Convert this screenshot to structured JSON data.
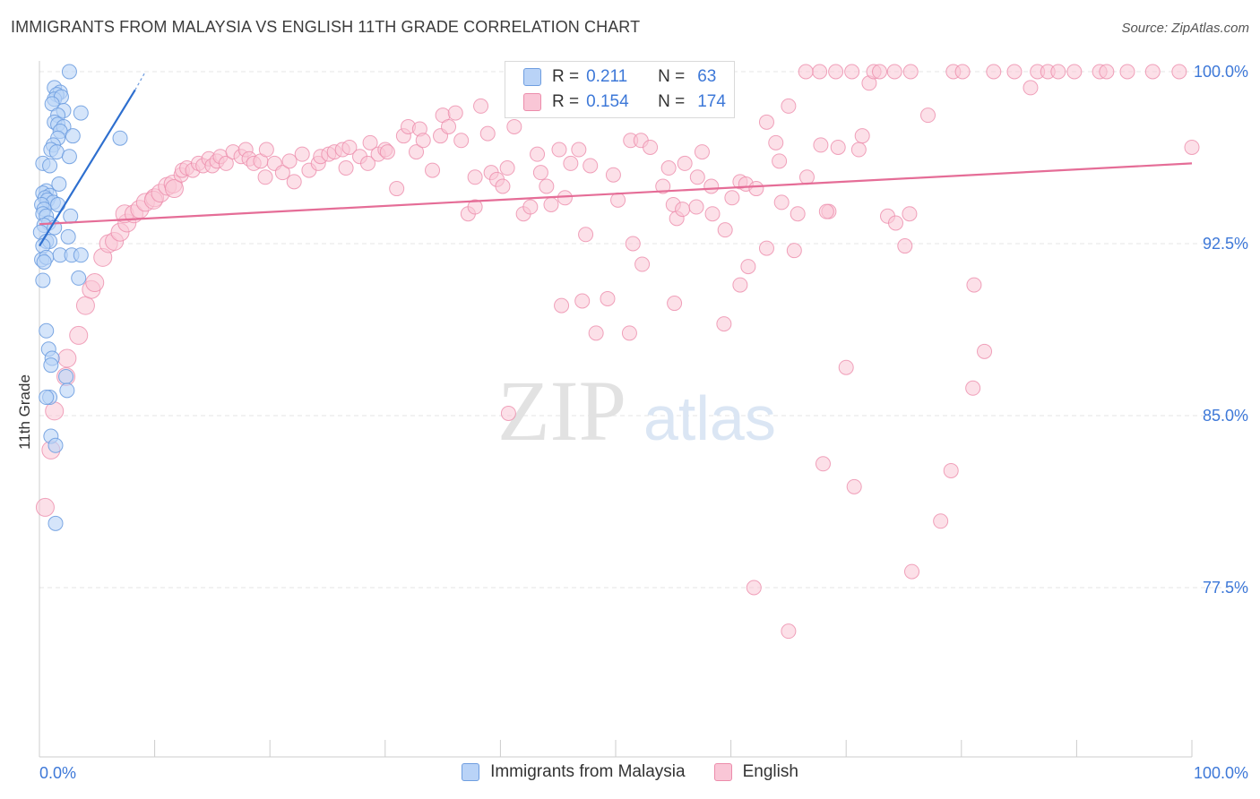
{
  "header": {
    "title": "IMMIGRANTS FROM MALAYSIA VS ENGLISH 11TH GRADE CORRELATION CHART",
    "source": "Source: ZipAtlas.com"
  },
  "watermark": {
    "zip": "ZIP",
    "atlas": "atlas"
  },
  "legend_top": {
    "rows": [
      {
        "r_label": "R =",
        "r_value": "0.211",
        "n_label": "N =",
        "n_value": "63",
        "fill": "#b9d3f7",
        "stroke": "#6f9ee0"
      },
      {
        "r_label": "R =",
        "r_value": "0.154",
        "n_label": "N =",
        "n_value": "174",
        "fill": "#f9c6d6",
        "stroke": "#ec8cab"
      }
    ]
  },
  "legend_bottom": {
    "items": [
      {
        "label": "Immigrants from Malaysia",
        "fill": "#b9d3f7",
        "stroke": "#6f9ee0"
      },
      {
        "label": "English",
        "fill": "#f9c6d6",
        "stroke": "#ec8cab"
      }
    ]
  },
  "chart_data": {
    "type": "scatter",
    "title": "IMMIGRANTS FROM MALAYSIA VS ENGLISH 11TH GRADE CORRELATION CHART",
    "xlabel": "",
    "ylabel": "11th Grade",
    "xlim": [
      0,
      100
    ],
    "ylim": [
      71.5,
      100.8
    ],
    "x_tick_labels": [
      "0.0%",
      "100.0%"
    ],
    "y_ticks": [
      {
        "value": 100.0,
        "label": "100.0%"
      },
      {
        "value": 92.5,
        "label": "92.5%"
      },
      {
        "value": 85.0,
        "label": "85.0%"
      },
      {
        "value": 77.5,
        "label": "77.5%"
      }
    ],
    "series": [
      {
        "name": "Immigrants from Malaysia",
        "color": "#6f9ee0",
        "fill": "#b9d3f7",
        "R": 0.211,
        "N": 63,
        "trend": {
          "x0": 0,
          "y0": 92.4,
          "x1": 8.3,
          "y1": 99.2,
          "dash_to_x": 9.2,
          "dash_to_y": 100.0,
          "color": "#2e6fcf"
        },
        "points": [
          [
            2.6,
            100.0
          ],
          [
            1.3,
            99.3
          ],
          [
            1.8,
            99.1
          ],
          [
            1.5,
            99.0
          ],
          [
            1.3,
            98.8
          ],
          [
            1.9,
            98.9
          ],
          [
            1.1,
            98.6
          ],
          [
            2.1,
            98.3
          ],
          [
            3.6,
            98.2
          ],
          [
            1.6,
            98.1
          ],
          [
            1.3,
            97.8
          ],
          [
            1.6,
            97.7
          ],
          [
            2.1,
            97.6
          ],
          [
            1.8,
            97.4
          ],
          [
            2.9,
            97.2
          ],
          [
            1.6,
            97.1
          ],
          [
            7.0,
            97.1
          ],
          [
            1.2,
            96.8
          ],
          [
            1.0,
            96.6
          ],
          [
            1.5,
            96.5
          ],
          [
            2.6,
            96.3
          ],
          [
            0.3,
            96.0
          ],
          [
            0.9,
            95.9
          ],
          [
            1.7,
            95.1
          ],
          [
            0.6,
            94.8
          ],
          [
            0.3,
            94.7
          ],
          [
            0.9,
            94.6
          ],
          [
            0.5,
            94.5
          ],
          [
            0.7,
            94.4
          ],
          [
            1.2,
            94.3
          ],
          [
            0.2,
            94.2
          ],
          [
            1.6,
            94.2
          ],
          [
            0.4,
            94.0
          ],
          [
            0.3,
            93.8
          ],
          [
            0.6,
            93.7
          ],
          [
            2.7,
            93.7
          ],
          [
            0.8,
            93.4
          ],
          [
            0.4,
            93.3
          ],
          [
            0.1,
            93.0
          ],
          [
            1.3,
            93.2
          ],
          [
            2.5,
            92.8
          ],
          [
            0.6,
            92.6
          ],
          [
            0.9,
            92.6
          ],
          [
            0.3,
            92.4
          ],
          [
            1.8,
            92.0
          ],
          [
            2.8,
            92.0
          ],
          [
            3.6,
            92.0
          ],
          [
            0.2,
            91.8
          ],
          [
            0.6,
            91.9
          ],
          [
            0.4,
            91.7
          ],
          [
            3.4,
            91.0
          ],
          [
            0.3,
            90.9
          ],
          [
            0.6,
            88.7
          ],
          [
            0.8,
            87.9
          ],
          [
            1.1,
            87.5
          ],
          [
            1.0,
            87.2
          ],
          [
            2.3,
            86.7
          ],
          [
            2.4,
            86.1
          ],
          [
            0.9,
            85.8
          ],
          [
            0.6,
            85.8
          ],
          [
            1.0,
            84.1
          ],
          [
            1.4,
            83.7
          ],
          [
            1.4,
            80.3
          ]
        ]
      },
      {
        "name": "English",
        "color": "#ec8cab",
        "fill": "#f9c6d6",
        "R": 0.154,
        "N": 174,
        "trend": {
          "x0": 0,
          "y0": 93.35,
          "x1": 100,
          "y1": 96.0,
          "color": "#e56d97"
        },
        "points": [
          [
            0.5,
            81.0
          ],
          [
            1.0,
            83.5
          ],
          [
            1.3,
            85.2
          ],
          [
            2.3,
            86.7
          ],
          [
            2.4,
            87.5
          ],
          [
            3.4,
            88.5
          ],
          [
            4.0,
            89.8
          ],
          [
            4.5,
            90.5
          ],
          [
            4.8,
            90.8
          ],
          [
            5.5,
            91.9
          ],
          [
            6.0,
            92.5
          ],
          [
            6.5,
            92.6
          ],
          [
            7.0,
            93.0
          ],
          [
            7.6,
            93.4
          ],
          [
            7.4,
            93.8
          ],
          [
            8.2,
            93.8
          ],
          [
            8.7,
            94.0
          ],
          [
            9.2,
            94.3
          ],
          [
            10.0,
            94.5
          ],
          [
            9.9,
            94.4
          ],
          [
            10.5,
            94.7
          ],
          [
            11.1,
            95.0
          ],
          [
            11.6,
            95.1
          ],
          [
            11.7,
            94.9
          ],
          [
            12.3,
            95.5
          ],
          [
            12.4,
            95.7
          ],
          [
            12.8,
            95.8
          ],
          [
            13.3,
            95.7
          ],
          [
            13.8,
            96.0
          ],
          [
            14.2,
            95.9
          ],
          [
            14.7,
            96.2
          ],
          [
            15.0,
            95.9
          ],
          [
            15.4,
            96.1
          ],
          [
            15.7,
            96.3
          ],
          [
            16.2,
            96.0
          ],
          [
            16.8,
            96.5
          ],
          [
            17.5,
            96.3
          ],
          [
            17.9,
            96.6
          ],
          [
            18.2,
            96.2
          ],
          [
            18.6,
            96.0
          ],
          [
            19.2,
            96.1
          ],
          [
            19.7,
            96.6
          ],
          [
            19.6,
            95.4
          ],
          [
            20.4,
            96.0
          ],
          [
            21.1,
            95.6
          ],
          [
            21.7,
            96.1
          ],
          [
            22.1,
            95.2
          ],
          [
            22.8,
            96.4
          ],
          [
            23.4,
            95.7
          ],
          [
            24.2,
            96.0
          ],
          [
            24.4,
            96.3
          ],
          [
            25.1,
            96.4
          ],
          [
            25.6,
            96.5
          ],
          [
            26.3,
            96.6
          ],
          [
            26.6,
            95.8
          ],
          [
            26.9,
            96.7
          ],
          [
            27.8,
            96.3
          ],
          [
            28.5,
            96.0
          ],
          [
            28.7,
            96.9
          ],
          [
            29.4,
            96.4
          ],
          [
            30.0,
            96.6
          ],
          [
            30.2,
            96.5
          ],
          [
            31.0,
            94.9
          ],
          [
            31.6,
            97.2
          ],
          [
            32.0,
            97.6
          ],
          [
            32.7,
            96.5
          ],
          [
            33.0,
            97.5
          ],
          [
            33.3,
            97.0
          ],
          [
            34.1,
            95.7
          ],
          [
            34.8,
            97.2
          ],
          [
            35.0,
            98.1
          ],
          [
            35.5,
            97.6
          ],
          [
            36.1,
            98.2
          ],
          [
            36.6,
            97.0
          ],
          [
            37.2,
            93.8
          ],
          [
            37.8,
            94.1
          ],
          [
            38.3,
            98.5
          ],
          [
            38.9,
            97.3
          ],
          [
            39.2,
            95.6
          ],
          [
            39.7,
            95.3
          ],
          [
            40.2,
            95.0
          ],
          [
            40.6,
            95.8
          ],
          [
            41.2,
            97.6
          ],
          [
            42.0,
            93.8
          ],
          [
            42.6,
            94.1
          ],
          [
            43.2,
            96.4
          ],
          [
            43.5,
            95.6
          ],
          [
            44.0,
            95.0
          ],
          [
            44.4,
            94.2
          ],
          [
            45.1,
            96.6
          ],
          [
            45.6,
            94.5
          ],
          [
            46.1,
            96.0
          ],
          [
            46.8,
            96.6
          ],
          [
            47.4,
            92.9
          ],
          [
            49.8,
            95.5
          ],
          [
            50.2,
            94.4
          ],
          [
            51.3,
            97.0
          ],
          [
            51.5,
            92.5
          ],
          [
            52.2,
            97.0
          ],
          [
            53.0,
            96.7
          ],
          [
            54.1,
            95.0
          ],
          [
            54.6,
            95.8
          ],
          [
            55.0,
            94.2
          ],
          [
            55.3,
            93.6
          ],
          [
            55.8,
            94.0
          ],
          [
            57.1,
            95.4
          ],
          [
            57.5,
            96.5
          ],
          [
            58.4,
            93.8
          ],
          [
            58.8,
            98.4
          ],
          [
            59.5,
            93.1
          ],
          [
            60.1,
            94.5
          ],
          [
            60.8,
            95.2
          ],
          [
            61.3,
            95.1
          ],
          [
            62.2,
            94.9
          ],
          [
            63.1,
            97.8
          ],
          [
            63.9,
            96.9
          ],
          [
            64.2,
            96.1
          ],
          [
            65.0,
            98.5
          ],
          [
            65.8,
            93.8
          ],
          [
            67.8,
            96.8
          ],
          [
            68.5,
            93.9
          ],
          [
            69.3,
            96.7
          ],
          [
            70.0,
            87.1
          ],
          [
            71.1,
            96.6
          ],
          [
            71.4,
            97.2
          ],
          [
            72.0,
            99.5
          ],
          [
            73.6,
            93.7
          ],
          [
            74.3,
            93.4
          ],
          [
            75.5,
            93.8
          ],
          [
            75.1,
            92.4
          ],
          [
            77.1,
            98.1
          ],
          [
            81.1,
            90.7
          ],
          [
            82.0,
            87.8
          ],
          [
            81.0,
            86.2
          ],
          [
            79.1,
            82.6
          ],
          [
            78.2,
            80.4
          ],
          [
            75.7,
            78.2
          ],
          [
            70.7,
            81.9
          ],
          [
            68.0,
            82.9
          ],
          [
            65.0,
            75.6
          ],
          [
            62.0,
            77.5
          ],
          [
            59.4,
            89.0
          ],
          [
            60.8,
            90.7
          ],
          [
            55.1,
            89.9
          ],
          [
            52.3,
            91.6
          ],
          [
            51.2,
            88.6
          ],
          [
            49.3,
            90.1
          ],
          [
            48.3,
            88.6
          ],
          [
            47.1,
            90.0
          ],
          [
            45.3,
            89.8
          ],
          [
            37.8,
            95.4
          ],
          [
            40.7,
            85.1
          ],
          [
            48.1,
            98.3
          ],
          [
            47.8,
            95.9
          ],
          [
            56.0,
            96.0
          ],
          [
            57.0,
            94.1
          ],
          [
            58.3,
            95.0
          ],
          [
            61.5,
            91.5
          ],
          [
            65.5,
            92.2
          ],
          [
            68.3,
            93.9
          ],
          [
            66.6,
            95.4
          ],
          [
            64.4,
            94.3
          ],
          [
            63.1,
            92.3
          ],
          [
            67.7,
            100.0
          ],
          [
            66.5,
            100.0
          ],
          [
            69.1,
            100.0
          ],
          [
            70.5,
            100.0
          ],
          [
            72.4,
            100.0
          ],
          [
            72.9,
            100.0
          ],
          [
            74.2,
            100.0
          ],
          [
            75.6,
            100.0
          ],
          [
            79.3,
            100.0
          ],
          [
            80.1,
            100.0
          ],
          [
            82.8,
            100.0
          ],
          [
            84.6,
            100.0
          ],
          [
            86.6,
            100.0
          ],
          [
            87.5,
            100.0
          ],
          [
            88.4,
            100.0
          ],
          [
            89.8,
            100.0
          ],
          [
            92.0,
            100.0
          ],
          [
            92.6,
            100.0
          ],
          [
            94.4,
            100.0
          ],
          [
            96.6,
            100.0
          ],
          [
            98.9,
            100.0
          ],
          [
            100.0,
            96.7
          ],
          [
            86.0,
            99.3
          ],
          [
            54.0,
            99.3
          ]
        ]
      }
    ]
  }
}
